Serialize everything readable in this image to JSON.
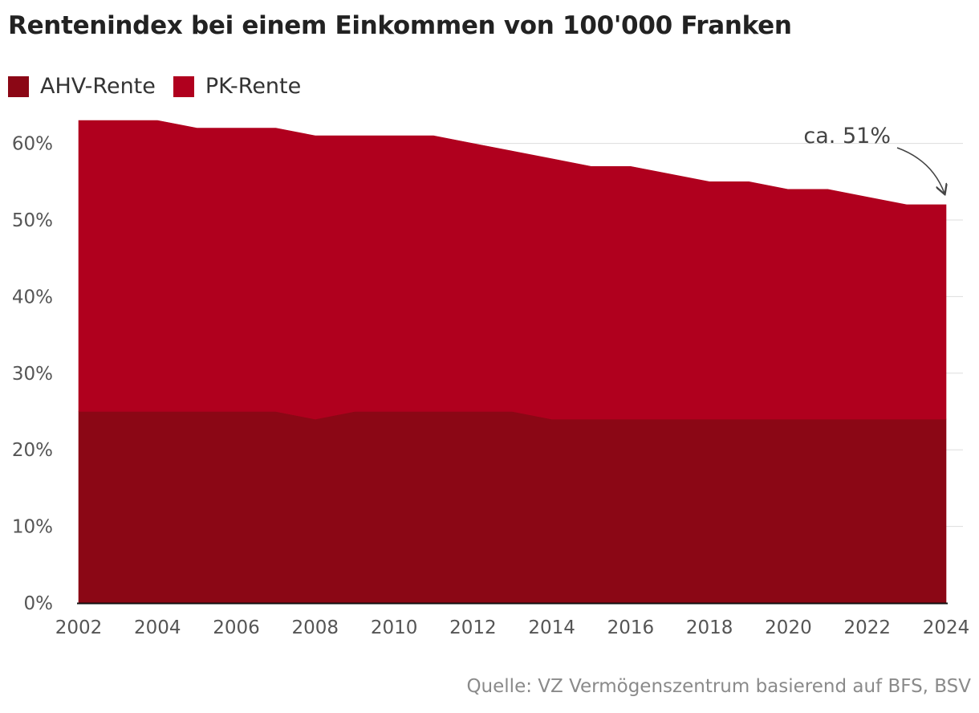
{
  "chart_data": {
    "type": "area",
    "stacked": true,
    "title": "Rentenindex bei einem Einkommen von 100'000 Franken",
    "x": [
      2002,
      2003,
      2004,
      2005,
      2006,
      2007,
      2008,
      2009,
      2010,
      2011,
      2012,
      2013,
      2014,
      2015,
      2016,
      2017,
      2018,
      2019,
      2020,
      2021,
      2022,
      2023,
      2024
    ],
    "series": [
      {
        "name": "AHV-Rente",
        "color": "#8b0715",
        "values": [
          25,
          25,
          25,
          25,
          25,
          25,
          24,
          25,
          25,
          25,
          25,
          25,
          24,
          24,
          24,
          24,
          24,
          24,
          24,
          24,
          24,
          24,
          24
        ]
      },
      {
        "name": "PK-Rente",
        "color": "#b0001e",
        "values": [
          38,
          38,
          38,
          37,
          37,
          37,
          37,
          36,
          36,
          36,
          35,
          34,
          34,
          33,
          33,
          32,
          31,
          31,
          30,
          30,
          29,
          28,
          28
        ]
      }
    ],
    "xticks": [
      "2002",
      "2004",
      "2006",
      "2008",
      "2010",
      "2012",
      "2014",
      "2016",
      "2018",
      "2020",
      "2022",
      "2024"
    ],
    "yticks": [
      "0%",
      "10%",
      "20%",
      "30%",
      "40%",
      "50%",
      "60%"
    ],
    "ylim": [
      0,
      63
    ],
    "xlim": [
      2002,
      2024
    ],
    "grid": true,
    "legend_position": "top-left",
    "annotation": {
      "text": "ca. 51%",
      "target_x": 2024,
      "target_y": 52
    },
    "source": "Quelle: VZ Vermögenszentrum basierend auf BFS, BSV"
  }
}
